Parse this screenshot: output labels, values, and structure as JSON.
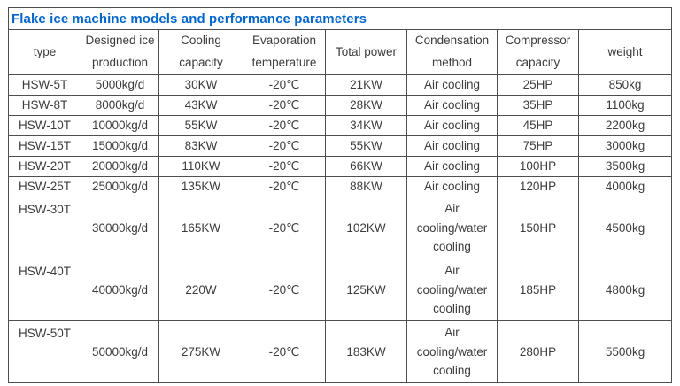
{
  "title": "Flake ice machine models and performance parameters",
  "colors": {
    "title_accent": "#0366cc",
    "border": "#4f4f4f",
    "text": "#3c3c3c",
    "background": "#ffffff"
  },
  "table": {
    "headers": [
      "type",
      "Designed ice production",
      "Cooling capacity",
      "Evaporation temperature",
      "Total power",
      "Condensation method",
      "Compressor capacity",
      "weight"
    ],
    "rows": [
      {
        "tall": false,
        "cells": [
          "HSW-5T",
          "5000kg/d",
          "30KW",
          "-20℃",
          "21KW",
          "Air cooling",
          "25HP",
          "850kg"
        ]
      },
      {
        "tall": false,
        "cells": [
          "HSW-8T",
          "8000kg/d",
          "43KW",
          "-20℃",
          "28KW",
          "Air cooling",
          "35HP",
          "1100kg"
        ]
      },
      {
        "tall": false,
        "cells": [
          "HSW-10T",
          "10000kg/d",
          "55KW",
          "-20℃",
          "34KW",
          "Air cooling",
          "45HP",
          "2200kg"
        ]
      },
      {
        "tall": false,
        "cells": [
          "HSW-15T",
          "15000kg/d",
          "83KW",
          "-20℃",
          "55KW",
          "Air cooling",
          "75HP",
          "3000kg"
        ]
      },
      {
        "tall": false,
        "cells": [
          "HSW-20T",
          "20000kg/d",
          "110KW",
          "-20℃",
          "66KW",
          "Air cooling",
          "100HP",
          "3500kg"
        ]
      },
      {
        "tall": false,
        "cells": [
          "HSW-25T",
          "25000kg/d",
          "135KW",
          "-20℃",
          "88KW",
          "Air cooling",
          "120HP",
          "4000kg"
        ]
      },
      {
        "tall": true,
        "cells": [
          "HSW-30T",
          "30000kg/d",
          "165KW",
          "-20℃",
          "102KW",
          "Air\ncooling/water\ncooling",
          "150HP",
          "4500kg"
        ]
      },
      {
        "tall": true,
        "cells": [
          "HSW-40T",
          "40000kg/d",
          "220W",
          "-20℃",
          "125KW",
          "Air\ncooling/water\ncooling",
          "185HP",
          "4800kg"
        ]
      },
      {
        "tall": true,
        "cells": [
          "HSW-50T",
          "50000kg/d",
          "275KW",
          "-20℃",
          "183KW",
          "Air\ncooling/water\ncooling",
          "280HP",
          "5500kg"
        ]
      }
    ]
  }
}
